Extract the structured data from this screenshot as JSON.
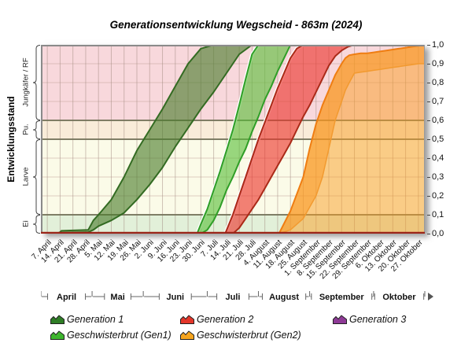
{
  "title": "Generationsentwicklung Wegscheid - 863m (2024)",
  "y_axis_left": {
    "label": "Entwicklungsstand",
    "stages": [
      {
        "label": "Jungkäfer / RF",
        "from": 0.6,
        "to": 1.0,
        "color": "#f8d8dc"
      },
      {
        "label": "Pu.",
        "from": 0.5,
        "to": 0.6,
        "color": "#f9ecd9"
      },
      {
        "label": "Larve",
        "from": 0.1,
        "to": 0.5,
        "color": "#fbfbe8"
      },
      {
        "label": "Ei",
        "from": 0.0,
        "to": 0.1,
        "color": "#e2f0d9"
      }
    ]
  },
  "y_axis_right": {
    "ticks": [
      "1,0",
      "0,9",
      "0,8",
      "0,7",
      "0,6",
      "0,5",
      "0,4",
      "0,3",
      "0,2",
      "0,1",
      "0,0"
    ]
  },
  "x_axis": {
    "months": [
      {
        "label": "April",
        "weeks": 4
      },
      {
        "label": "Mai",
        "weeks": 4
      },
      {
        "label": "Juni",
        "weeks": 5
      },
      {
        "label": "Juli",
        "weeks": 4
      },
      {
        "label": "August",
        "weeks": 4
      },
      {
        "label": "September",
        "weeks": 5
      },
      {
        "label": "Oktober",
        "weeks": 4
      }
    ]
  },
  "legend": {
    "items": [
      {
        "id": "gen1",
        "label": "Generation 1",
        "color": "#2f7d26"
      },
      {
        "id": "gen2",
        "label": "Generation 2",
        "color": "#e3362a"
      },
      {
        "id": "gen3",
        "label": "Generation 3",
        "color": "#8e3a96"
      },
      {
        "id": "gesch1",
        "label": "Geschwisterbrut (Gen1)",
        "color": "#3eb52e"
      },
      {
        "id": "gesch2",
        "label": "Geschwisterbrut (Gen2)",
        "color": "#f6a51f"
      }
    ]
  },
  "chart_data": {
    "type": "area",
    "title": "Generationsentwicklung Wegscheid - 863m (2024)",
    "ylabel": "Entwicklungsstand",
    "ylim": [
      0,
      1
    ],
    "grid": {
      "v_color": "#a18a80",
      "h_color": "#c2a89e",
      "boundary_color": "#73735a",
      "axis_color": "#9b2418",
      "frame_color": "#8a8a8a"
    },
    "categories": [
      "7. April",
      "14. April",
      "21. April",
      "28. April",
      "5. Mai",
      "12. Mai",
      "19. Mai",
      "26. Mai",
      "2. Juni",
      "9. Juni",
      "16. Juni",
      "23. Juni",
      "30. Juni",
      "7. Juli",
      "14. Juli",
      "21. Juli",
      "28. Juli",
      "4. August",
      "11. August",
      "18. August",
      "25. August",
      "1. September",
      "8. September",
      "15. September",
      "22. September",
      "29. September",
      "6. Oktober",
      "13. Oktober",
      "20. Oktober",
      "27. Oktober"
    ],
    "series": [
      {
        "id": "gesch2",
        "name": "Geschwisterbrut (Gen2)",
        "band": true,
        "fill_to_zero": true,
        "fill": "rgba(250,148,28,0.5)",
        "wash": "rgba(250,157,35,0.5)",
        "edge": "#ef7d12",
        "min_edge": "#f29a30",
        "points": [
          [
            18.1,
            0,
            0
          ],
          [
            19,
            0.02,
            0.12
          ],
          [
            20,
            0.08,
            0.3
          ],
          [
            20.5,
            0.14,
            0.45
          ],
          [
            21,
            0.2,
            0.58
          ],
          [
            21.5,
            0.3,
            0.68
          ],
          [
            22,
            0.45,
            0.76
          ],
          [
            22.5,
            0.6,
            0.84
          ],
          [
            23,
            0.7,
            0.9
          ],
          [
            23.3,
            0.76,
            0.93
          ],
          [
            23.6,
            0.8,
            0.945
          ],
          [
            24,
            0.85,
            0.95
          ],
          [
            24.5,
            0.855,
            0.955
          ],
          [
            25,
            0.86,
            0.955
          ],
          [
            25.5,
            0.865,
            0.96
          ],
          [
            26,
            0.87,
            0.965
          ],
          [
            26.5,
            0.875,
            0.97
          ],
          [
            27,
            0.88,
            0.975
          ],
          [
            27.5,
            0.885,
            0.98
          ],
          [
            28,
            0.89,
            0.985
          ],
          [
            28.5,
            0.895,
            0.99
          ],
          [
            29,
            0.9,
            0.995
          ],
          [
            29.5,
            0.9,
            1.0
          ]
        ]
      },
      {
        "id": "gen2",
        "name": "Generation 2",
        "band": true,
        "halo": true,
        "fill": "rgba(236,52,44,0.62)",
        "edge": "#aa2a18",
        "min_edge": "#aa2a18",
        "points": [
          [
            13.9,
            0,
            0
          ],
          [
            14.5,
            0,
            0.1
          ],
          [
            15,
            0.03,
            0.2
          ],
          [
            15.5,
            0.08,
            0.3
          ],
          [
            16,
            0.13,
            0.4
          ],
          [
            16.5,
            0.18,
            0.5
          ],
          [
            17,
            0.24,
            0.59
          ],
          [
            17.5,
            0.3,
            0.68
          ],
          [
            18,
            0.36,
            0.77
          ],
          [
            18.5,
            0.42,
            0.85
          ],
          [
            19,
            0.48,
            0.93
          ],
          [
            19.5,
            0.55,
            0.98
          ],
          [
            20,
            0.62,
            1
          ],
          [
            20.5,
            0.68,
            1
          ],
          [
            21,
            0.75,
            1
          ],
          [
            21.5,
            0.82,
            1
          ],
          [
            22,
            0.89,
            1
          ],
          [
            22.5,
            0.94,
            1
          ],
          [
            23,
            0.97,
            1
          ],
          [
            23.5,
            0.99,
            1
          ],
          [
            24,
            1,
            1
          ]
        ]
      },
      {
        "id": "gesch1",
        "name": "Geschwisterbrut (Gen1)",
        "band": true,
        "halo": true,
        "fill": "rgba(86,190,54,0.6)",
        "edge": "#2f9e27",
        "min_edge": "#2f9e27",
        "points": [
          [
            11.7,
            0,
            0
          ],
          [
            12,
            0,
            0.05
          ],
          [
            12.5,
            0.02,
            0.13
          ],
          [
            13,
            0.07,
            0.23
          ],
          [
            13.5,
            0.14,
            0.33
          ],
          [
            14,
            0.23,
            0.44
          ],
          [
            14.5,
            0.3,
            0.55
          ],
          [
            15,
            0.38,
            0.68
          ],
          [
            15.5,
            0.45,
            0.82
          ],
          [
            16,
            0.54,
            0.95
          ],
          [
            16.5,
            0.62,
            1
          ],
          [
            17,
            0.71,
            1
          ],
          [
            17.5,
            0.78,
            1
          ],
          [
            18,
            0.86,
            1
          ],
          [
            18.5,
            0.93,
            1
          ],
          [
            19,
            1,
            1
          ]
        ]
      },
      {
        "id": "gen1",
        "name": "Generation 1",
        "band": true,
        "fill": "rgba(74,124,44,0.62)",
        "edge": "#336b22",
        "min_edge": "#336b22",
        "points": [
          [
            0.9,
            0,
            0.005
          ],
          [
            1.0,
            0,
            0.008
          ],
          [
            1.1,
            0.004,
            0.015
          ],
          [
            3.2,
            0.008,
            0.02
          ],
          [
            3.6,
            0.02,
            0.07
          ],
          [
            4,
            0.04,
            0.1
          ],
          [
            5,
            0.07,
            0.18
          ],
          [
            6,
            0.11,
            0.3
          ],
          [
            7,
            0.18,
            0.44
          ],
          [
            8,
            0.26,
            0.55
          ],
          [
            9,
            0.35,
            0.66
          ],
          [
            10,
            0.46,
            0.78
          ],
          [
            11,
            0.56,
            0.9
          ],
          [
            12,
            0.66,
            0.98
          ],
          [
            13,
            0.75,
            1
          ],
          [
            14,
            0.85,
            1
          ],
          [
            15,
            0.95,
            1
          ],
          [
            16,
            1,
            1
          ]
        ]
      },
      {
        "id": "gen3",
        "name": "Generation 3",
        "band": true,
        "fill": "rgba(142,58,150,0.6)",
        "edge": "#5a145a",
        "min_edge": "#5a145a",
        "points": []
      }
    ]
  }
}
